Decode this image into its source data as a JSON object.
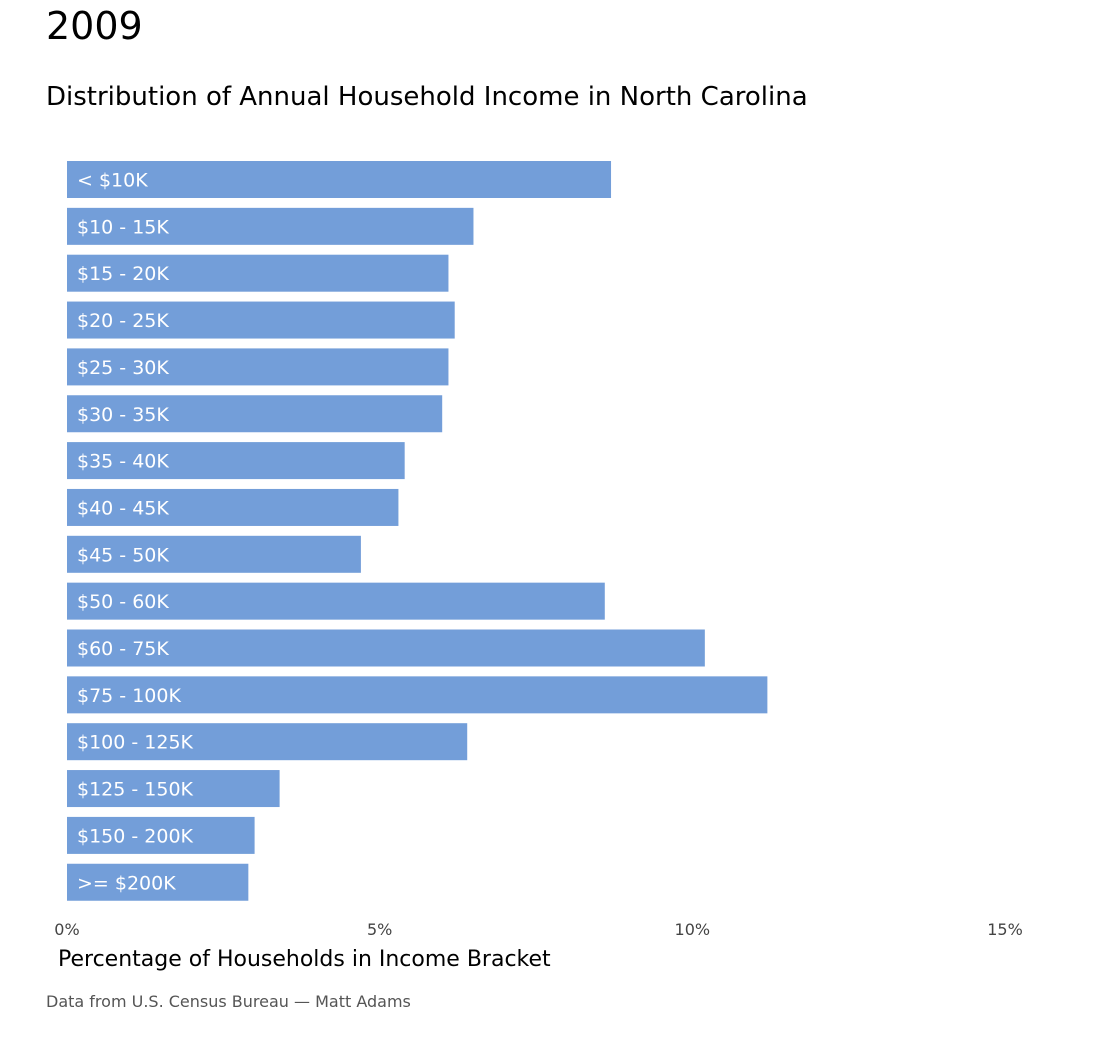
{
  "header": {
    "year": "2009",
    "subtitle": "Distribution of Annual Household Income in North Carolina"
  },
  "footer": {
    "source": "Data from U.S. Census Bureau — Matt Adams"
  },
  "colors": {
    "bar": "#739ed9",
    "bar_label": "#ffffff"
  },
  "chart_data": {
    "type": "bar",
    "orientation": "horizontal",
    "categories": [
      "< $10K",
      "$10 - 15K",
      "$15 - 20K",
      "$20 - 25K",
      "$25 - 30K",
      "$30 - 35K",
      "$35 - 40K",
      "$40 - 45K",
      "$45 - 50K",
      "$50 - 60K",
      "$60 - 75K",
      "$75 - 100K",
      "$100 - 125K",
      "$125 - 150K",
      "$150 - 200K",
      ">= $200K"
    ],
    "values": [
      8.7,
      6.5,
      6.1,
      6.2,
      6.1,
      6.0,
      5.4,
      5.3,
      4.7,
      8.6,
      10.2,
      11.2,
      6.4,
      3.4,
      3.0,
      2.9
    ],
    "xlabel": "Percentage of Households in Income Bracket",
    "xlim": [
      0,
      15
    ],
    "xticks": [
      0,
      5,
      10,
      15
    ],
    "xtick_labels": [
      "0%",
      "5%",
      "10%",
      "15%"
    ],
    "grid": false
  }
}
